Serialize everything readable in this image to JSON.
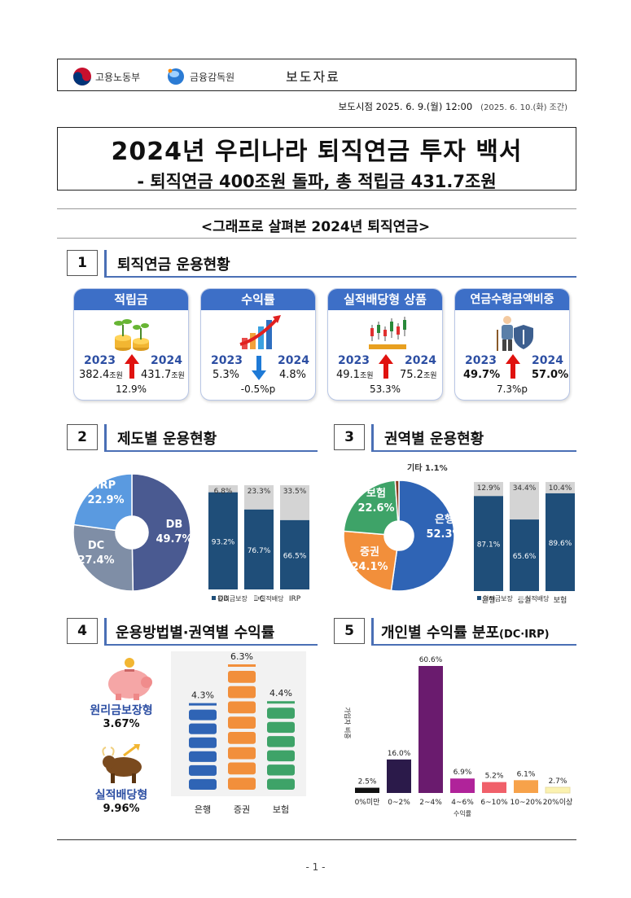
{
  "header": {
    "logo1": "고용노동부",
    "logo2": "금융감독원",
    "press_label": "보도자료",
    "release_time": "보도시점  2025. 6. 9.(월) 12:00",
    "release_morning": "(2025. 6. 10.(화) 조간)"
  },
  "title": {
    "line1": "2024년 우리나라 퇴직연금 투자 백서",
    "line2": "- 퇴직연금 400조원 돌파, 총 적립금 431.7조원"
  },
  "graph_title": "<그래프로 살펴본 2024년 퇴직연금>",
  "sections": {
    "s1": {
      "num": "1",
      "title": "퇴직연금 운용현황"
    },
    "s2": {
      "num": "2",
      "title": "제도별 운용현황"
    },
    "s3": {
      "num": "3",
      "title": "권역별 운용현황"
    },
    "s4": {
      "num": "4",
      "title": "운용방법별·권역별 수익률"
    },
    "s5": {
      "num": "5",
      "title": "개인별 수익률 분포",
      "title_suffix": "(DC·IRP)"
    }
  },
  "cards": [
    {
      "head": "적립금",
      "y1": "2023",
      "y2": "2024",
      "v1": "382.4",
      "u1": "조원",
      "v2": "431.7",
      "u2": "조원",
      "change": "12.9%",
      "dir": "up"
    },
    {
      "head": "수익률",
      "y1": "2023",
      "y2": "2024",
      "v1": "5.3%",
      "u1": "",
      "v2": "4.8%",
      "u2": "",
      "change": "-0.5%p",
      "dir": "down"
    },
    {
      "head": "실적배당형 상품",
      "y1": "2023",
      "y2": "2024",
      "v1": "49.1",
      "u1": "조원",
      "v2": "75.2",
      "u2": "조원",
      "change": "53.3%",
      "dir": "up"
    },
    {
      "head": "연금수령금액비중",
      "y1": "2023",
      "y2": "2024",
      "v1": "49.7%",
      "u1": "",
      "v2": "57.0%",
      "u2": "",
      "change": "7.3%p",
      "dir": "up"
    }
  ],
  "chart_data": [
    {
      "type": "pie",
      "title": "제도별 운용현황",
      "labels": [
        "DB",
        "DC",
        "IRP"
      ],
      "values": [
        49.7,
        27.4,
        22.9
      ],
      "display": [
        "49.7%",
        "27.4%",
        "22.9%"
      ],
      "colors": [
        "#4a5a91",
        "#7f8ea6",
        "#5a9ae0"
      ]
    },
    {
      "type": "bar",
      "stacked": true,
      "categories": [
        "DB",
        "DC",
        "IRP"
      ],
      "series": [
        {
          "name": "원리금보장",
          "values": [
            93.2,
            76.7,
            66.5
          ],
          "labels": [
            "93.2%",
            "76.7%",
            "66.5%"
          ],
          "color": "#1f4e79"
        },
        {
          "name": "실적배당",
          "values": [
            6.8,
            23.3,
            33.5
          ],
          "labels": [
            "6.8%",
            "23.3%",
            "33.5%"
          ],
          "color": "#d4d4d4"
        }
      ],
      "ylim": [
        0,
        100
      ]
    },
    {
      "type": "pie",
      "title": "권역별 운용현황",
      "labels": [
        "은행",
        "증권",
        "보험",
        "기타"
      ],
      "values": [
        52.3,
        24.1,
        22.6,
        1.1
      ],
      "display": [
        "52.3%",
        "24.1%",
        "22.6%",
        "1.1%"
      ],
      "colors": [
        "#2f64b5",
        "#f28f3b",
        "#3ea368",
        "#8b3a1f"
      ]
    },
    {
      "type": "bar",
      "stacked": true,
      "categories": [
        "은행",
        "증권",
        "보험"
      ],
      "series": [
        {
          "name": "원리금보장",
          "values": [
            87.1,
            65.6,
            89.6
          ],
          "labels": [
            "87.1%",
            "65.6%",
            "89.6%"
          ],
          "color": "#1f4e79"
        },
        {
          "name": "실적배당",
          "values": [
            12.9,
            34.4,
            10.4
          ],
          "labels": [
            "12.9%",
            "34.4%",
            "10.4%"
          ],
          "color": "#d4d4d4"
        }
      ],
      "ylim": [
        0,
        100
      ]
    },
    {
      "type": "bar",
      "title": "운용방법별·권역별 수익률",
      "categories": [
        "은행",
        "증권",
        "보험"
      ],
      "values": [
        4.3,
        6.3,
        4.4
      ],
      "labels": [
        "4.3%",
        "6.3%",
        "4.4%"
      ],
      "colors": [
        "#2f64b5",
        "#f28f3b",
        "#3ea368"
      ],
      "side_labels": [
        {
          "name": "원리금보장형",
          "value": "3.67%"
        },
        {
          "name": "실적배당형",
          "value": "9.96%"
        }
      ]
    },
    {
      "type": "bar",
      "title": "개인별 수익률 분포",
      "xlabel": "수익률",
      "ylabel": "가입자 비중",
      "categories": [
        "0%미만",
        "0~2%",
        "2~4%",
        "4~6%",
        "6~10%",
        "10~20%",
        "20%이상"
      ],
      "values": [
        2.5,
        16.0,
        60.6,
        6.9,
        5.2,
        6.1,
        2.7
      ],
      "labels": [
        "2.5%",
        "16.0%",
        "60.6%",
        "6.9%",
        "5.2%",
        "6.1%",
        "2.7%"
      ],
      "colors": [
        "#111111",
        "#2b1a4a",
        "#6a1b6e",
        "#b0239a",
        "#f0606a",
        "#f7a24a",
        "#fbf2b0"
      ]
    }
  ],
  "legend": {
    "guaranteed": "원리금보장",
    "performance": "실적배당"
  },
  "page_number": "- 1 -",
  "colors": {
    "accent": "#3d6fc7",
    "up_arrow": "#e0120f",
    "down_arrow": "#1e7ad6"
  }
}
